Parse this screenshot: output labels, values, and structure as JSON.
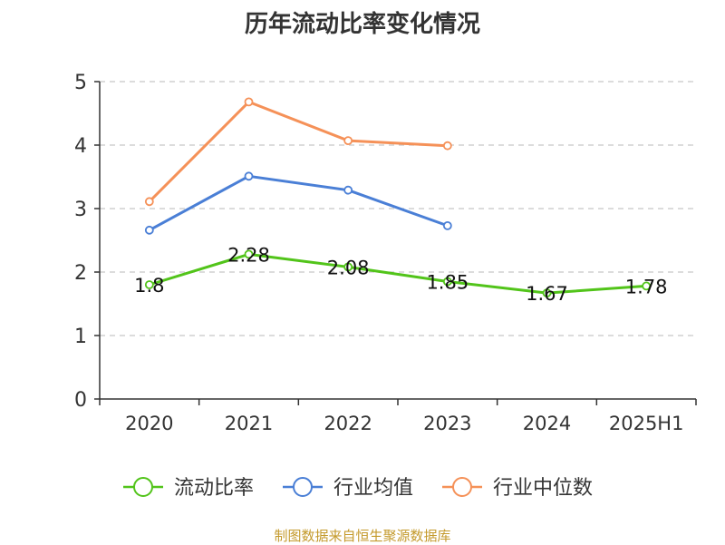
{
  "chart_data": {
    "type": "line",
    "title": "历年流动比率变化情况",
    "xlabel": "",
    "ylabel": "",
    "categories": [
      "2020",
      "2021",
      "2022",
      "2023",
      "2024",
      "2025H1"
    ],
    "ylim": [
      0,
      5
    ],
    "yticks": [
      0,
      1,
      2,
      3,
      4,
      5
    ],
    "grid": true,
    "legend_position": "bottom",
    "series": [
      {
        "name": "流动比率",
        "color": "#52c41a",
        "values": [
          1.8,
          2.28,
          2.08,
          1.85,
          1.67,
          1.78
        ],
        "labels": [
          "1.8",
          "2.28",
          "2.08",
          "1.85",
          "1.67",
          "1.78"
        ]
      },
      {
        "name": "行业均值",
        "color": "#4a7fd6",
        "values": [
          2.66,
          3.51,
          3.29,
          2.73,
          null,
          null
        ]
      },
      {
        "name": "行业中位数",
        "color": "#f59158",
        "values": [
          3.11,
          4.68,
          4.07,
          3.99,
          null,
          null
        ]
      }
    ]
  },
  "footer": {
    "source": "制图数据来自恒生聚源数据库"
  }
}
